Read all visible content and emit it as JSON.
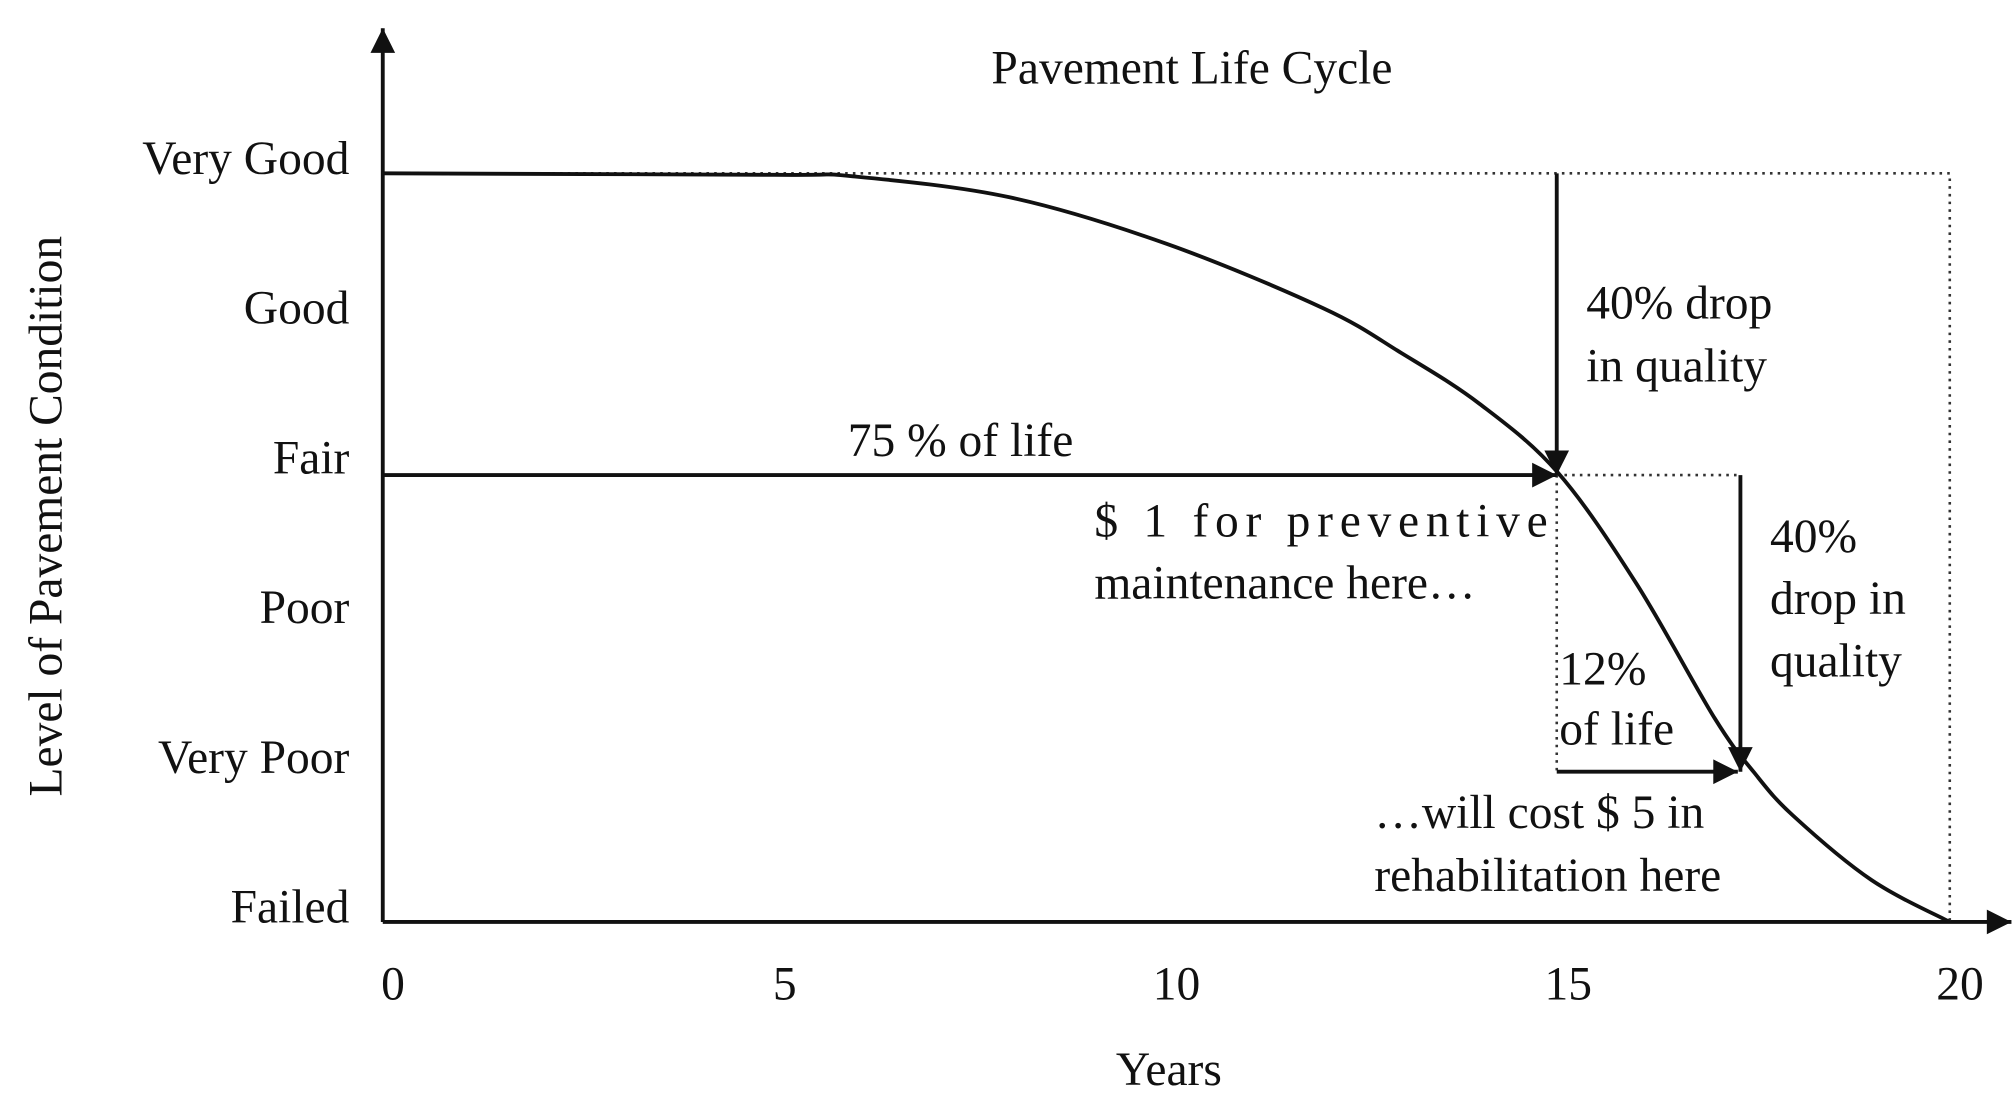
{
  "chart_data": {
    "type": "line",
    "title": "Pavement Life Cycle",
    "x_label": "Years",
    "y_label": "Level of Pavement Condition",
    "xlim": [
      0,
      20
    ],
    "xticks": [
      0,
      5,
      10,
      15,
      20
    ],
    "ylim": [
      0,
      5
    ],
    "yticks": [
      {
        "value": 0,
        "label": "Failed"
      },
      {
        "value": 1,
        "label": "Very Poor"
      },
      {
        "value": 2,
        "label": "Poor"
      },
      {
        "value": 3,
        "label": "Fair"
      },
      {
        "value": 4,
        "label": "Good"
      },
      {
        "value": 5,
        "label": "Very Good"
      }
    ],
    "x": [
      0,
      5,
      6,
      8,
      10,
      12,
      13,
      14,
      15,
      16,
      17,
      17.5,
      18,
      19,
      20
    ],
    "series": [
      {
        "color": "#111111",
        "values": [
          5,
          4.99,
          4.98,
          4.84,
          4.53,
          4.1,
          3.8,
          3.46,
          3,
          2.26,
          1.36,
          1,
          0.71,
          0.28,
          0
        ]
      }
    ],
    "annotations": [
      {
        "lines": [
          "40% drop",
          "in quality"
        ]
      },
      {
        "lines": [
          "75 % of life"
        ]
      },
      {
        "lines": [
          "$ 1 for preventive",
          "maintenance here…"
        ]
      },
      {
        "lines": [
          "40%",
          "drop in",
          "quality"
        ]
      },
      {
        "lines": [
          "12%",
          "of life"
        ]
      },
      {
        "lines": [
          "…will cost $ 5 in",
          "rehabilitation here"
        ]
      }
    ]
  }
}
